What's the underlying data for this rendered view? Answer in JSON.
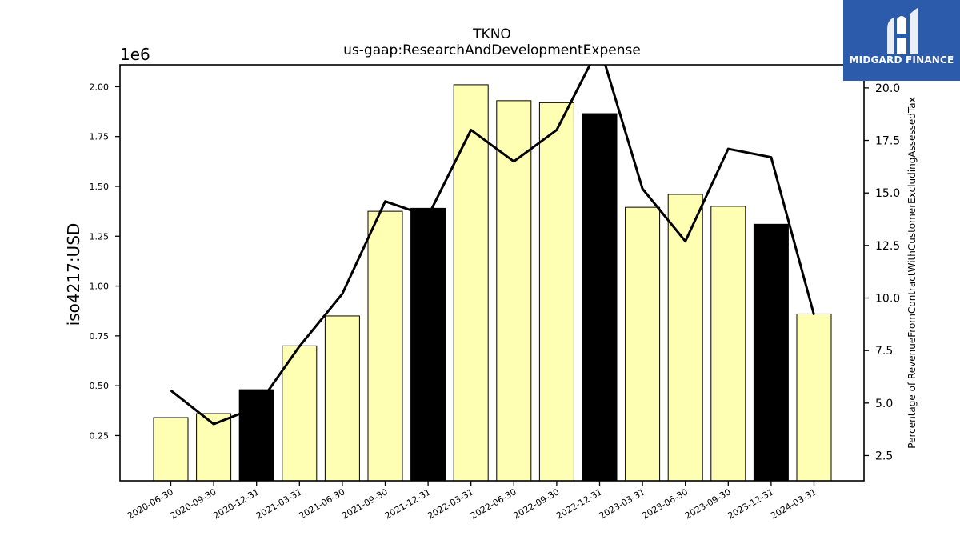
{
  "chart_data": {
    "type": "bar",
    "title": "TKNO",
    "subtitle": "us-gaap:ResearchAndDevelopmentExpense",
    "ylabel": "iso4217:USD",
    "y_offset_label": "1e6",
    "y2label": "Percentage of RevenueFromContractWithCustomerExcludingAssessedTax",
    "categories": [
      "2020-06-30",
      "2020-09-30",
      "2020-12-31",
      "2021-03-31",
      "2021-06-30",
      "2021-09-30",
      "2021-12-31",
      "2022-03-31",
      "2022-06-30",
      "2022-09-30",
      "2022-12-31",
      "2023-03-31",
      "2023-06-30",
      "2023-09-30",
      "2023-12-31",
      "2024-03-31"
    ],
    "series": [
      {
        "kind": "bar",
        "values": [
          0.34,
          0.36,
          0.48,
          0.7,
          0.85,
          1.375,
          1.39,
          2.01,
          1.93,
          1.92,
          1.865,
          1.395,
          1.46,
          1.4,
          1.31,
          0.86
        ],
        "highlight": [
          false,
          false,
          true,
          false,
          false,
          false,
          true,
          false,
          false,
          false,
          true,
          false,
          false,
          false,
          true,
          false
        ],
        "color": "#ffffb3",
        "highlight_color": "#000000"
      },
      {
        "kind": "line",
        "axis": "right",
        "values": [
          5.6,
          4.0,
          4.8,
          7.7,
          10.2,
          14.6,
          13.9,
          18.0,
          16.5,
          18.0,
          22.0,
          15.2,
          12.7,
          17.1,
          16.7,
          9.2
        ],
        "color": "#000000"
      }
    ],
    "ylim": [
      0.023,
      2.11
    ],
    "yticks": [
      "0.25",
      "0.50",
      "0.75",
      "1.00",
      "1.25",
      "1.50",
      "1.75",
      "2.00"
    ],
    "y2lim": [
      1.3,
      21.1
    ],
    "y2ticks": [
      "2.5",
      "5.0",
      "7.5",
      "10.0",
      "12.5",
      "15.0",
      "17.5",
      "20.0"
    ],
    "grid": false
  },
  "logo": {
    "text": "MIDGARD FINANCE",
    "color": "#2d5bab"
  }
}
